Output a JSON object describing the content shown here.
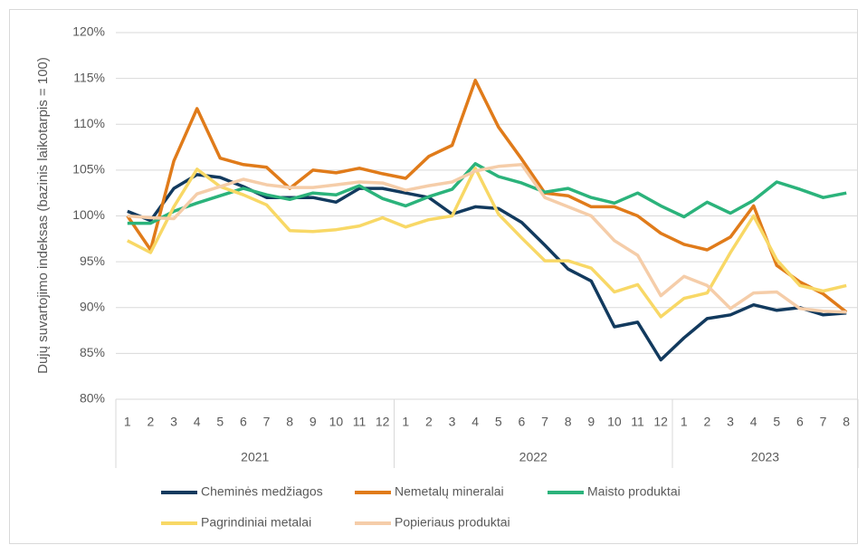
{
  "chart_data": {
    "type": "line",
    "y_label": "Dujų suvartojimo indeksas (bazinis laikotarpis = 100)",
    "categories": [
      "1",
      "2",
      "3",
      "4",
      "5",
      "6",
      "7",
      "8",
      "9",
      "10",
      "11",
      "12",
      "1",
      "2",
      "3",
      "4",
      "5",
      "6",
      "7",
      "8",
      "9",
      "10",
      "11",
      "12",
      "1",
      "2",
      "3",
      "4",
      "5",
      "6",
      "7",
      "8"
    ],
    "years": [
      "2021",
      "2022",
      "2023"
    ],
    "ylim": [
      80,
      120
    ],
    "yticks": [
      {
        "value": 80,
        "label": "80%"
      },
      {
        "value": 85,
        "label": "85%"
      },
      {
        "value": 90,
        "label": "90%"
      },
      {
        "value": 95,
        "label": "95%"
      },
      {
        "value": 100,
        "label": "100%"
      },
      {
        "value": 105,
        "label": "105%"
      },
      {
        "value": 110,
        "label": "110%"
      },
      {
        "value": 115,
        "label": "115%"
      },
      {
        "value": 120,
        "label": "120%"
      }
    ],
    "grid": true,
    "legend": "bottom",
    "series": [
      {
        "name": "Cheminės medžiagos",
        "color": "#123a5e",
        "values": [
          100.5,
          99.5,
          103,
          104.5,
          104.2,
          103.2,
          102,
          102,
          102,
          101.5,
          103,
          103,
          102.5,
          102,
          100.2,
          101,
          100.8,
          99.3,
          96.8,
          94.2,
          92.9,
          87.9,
          88.4,
          84.3,
          86.7,
          88.8,
          89.2,
          90.3,
          89.7,
          90,
          89.2,
          89.4
        ]
      },
      {
        "name": "Nemetalų mineralai",
        "color": "#e07b1a",
        "values": [
          100,
          96.3,
          106,
          111.7,
          106.3,
          105.6,
          105.3,
          103,
          105,
          104.7,
          105.2,
          104.6,
          104.1,
          106.5,
          107.7,
          114.8,
          109.7,
          106.2,
          102.5,
          102.2,
          101,
          101,
          100,
          98.1,
          96.9,
          96.3,
          97.7,
          101.1,
          94.6,
          92.8,
          91.5,
          89.5
        ]
      },
      {
        "name": "Maisto produktai",
        "color": "#2bb37b",
        "values": [
          99.2,
          99.2,
          100.5,
          101.4,
          102.2,
          103,
          102.3,
          101.8,
          102.5,
          102.3,
          103.3,
          101.9,
          101.1,
          102.1,
          102.9,
          105.7,
          104.3,
          103.6,
          102.6,
          103,
          102,
          101.4,
          102.5,
          101.1,
          99.9,
          101.5,
          100.3,
          101.7,
          103.7,
          102.9,
          102,
          102.5
        ]
      },
      {
        "name": "Pagrindiniai metalai",
        "color": "#f8d866",
        "values": [
          97.3,
          96,
          101,
          105.1,
          103.2,
          102.3,
          101.2,
          98.4,
          98.3,
          98.5,
          98.9,
          99.8,
          98.8,
          99.6,
          100,
          105.2,
          100.2,
          97.6,
          95.1,
          95.1,
          94.3,
          91.7,
          92.5,
          89,
          91,
          91.6,
          96,
          100,
          95.2,
          92.4,
          91.8,
          92.4
        ]
      },
      {
        "name": "Popieriaus produktai",
        "color": "#f5cda9",
        "values": [
          100,
          99.8,
          99.7,
          102.4,
          103.2,
          104,
          103.4,
          103.1,
          103.1,
          103.4,
          103.7,
          103.6,
          102.8,
          103.3,
          103.7,
          104.9,
          105.4,
          105.6,
          102,
          101,
          100,
          97.3,
          95.7,
          91.3,
          93.4,
          92.4,
          89.9,
          91.6,
          91.7,
          89.9,
          89.6,
          89.5
        ]
      }
    ]
  }
}
